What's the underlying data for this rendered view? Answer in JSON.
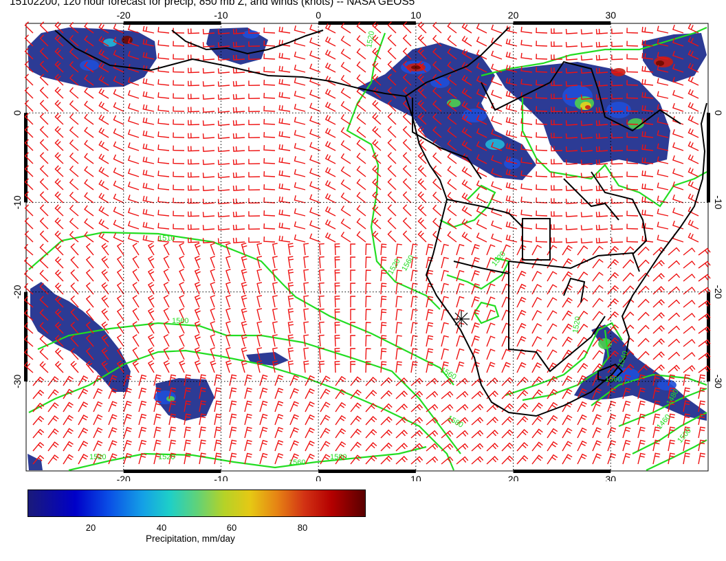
{
  "title": "15102200, 120 hour forecast for precip, 850 mb Z, and winds (knots) -- NASA GEOS5",
  "map": {
    "lon_labels": [
      "-20",
      "-10",
      "0",
      "10",
      "20",
      "30"
    ],
    "lat_labels": [
      "0",
      "-10",
      "-20",
      "-30"
    ],
    "lon_range": [
      -30,
      40
    ],
    "lat_range": [
      -40,
      10
    ],
    "contour_labels": [
      "1520",
      "1510",
      "1560",
      "1580",
      "1520",
      "1520",
      "1560",
      "1560",
      "1580",
      "1520",
      "1560",
      "1520",
      "1480",
      "1460",
      "1500",
      "1560",
      "1520",
      "1540"
    ],
    "colors": {
      "contour": "#22dd22",
      "wind_barb": "#ee1111",
      "coastline": "#000000",
      "grid": "#000000"
    },
    "marker": "station-cross"
  },
  "colorbar": {
    "ticks": [
      "20",
      "40",
      "60",
      "80"
    ],
    "tick_values": [
      20,
      40,
      60,
      80
    ],
    "range": [
      0,
      100
    ],
    "label": "Precipitation, mm/day"
  }
}
